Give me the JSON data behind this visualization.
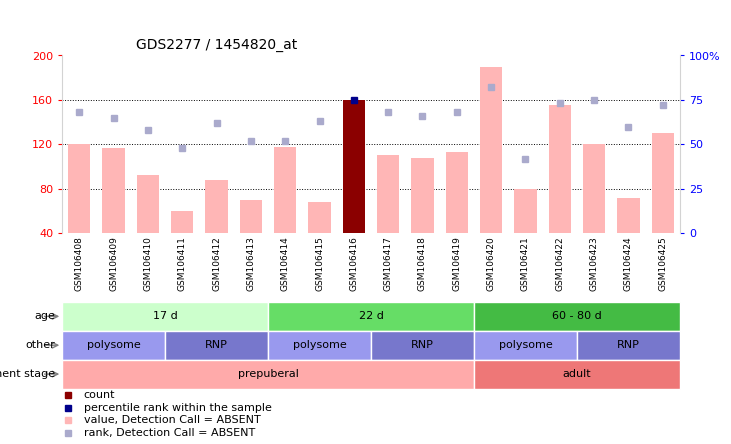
{
  "title": "GDS2277 / 1454820_at",
  "samples": [
    "GSM106408",
    "GSM106409",
    "GSM106410",
    "GSM106411",
    "GSM106412",
    "GSM106413",
    "GSM106414",
    "GSM106415",
    "GSM106416",
    "GSM106417",
    "GSM106418",
    "GSM106419",
    "GSM106420",
    "GSM106421",
    "GSM106422",
    "GSM106423",
    "GSM106424",
    "GSM106425"
  ],
  "bar_values": [
    120,
    117,
    92,
    60,
    88,
    70,
    118,
    68,
    160,
    110,
    108,
    113,
    190,
    80,
    155,
    120,
    72,
    130
  ],
  "bar_highlighted": [
    false,
    false,
    false,
    false,
    false,
    false,
    false,
    false,
    true,
    false,
    false,
    false,
    false,
    false,
    false,
    false,
    false,
    false
  ],
  "rank_values": [
    68,
    65,
    58,
    48,
    62,
    52,
    52,
    63,
    75,
    68,
    66,
    68,
    82,
    42,
    73,
    75,
    60,
    72
  ],
  "rank_highlighted": [
    false,
    false,
    false,
    false,
    false,
    false,
    false,
    false,
    true,
    false,
    false,
    false,
    false,
    false,
    false,
    false,
    false,
    false
  ],
  "bar_color_normal": "#FFB6B6",
  "bar_color_highlight": "#8B0000",
  "rank_color_normal": "#AAAACC",
  "rank_color_highlight": "#00008B",
  "ylim_left": [
    40,
    200
  ],
  "ylim_right": [
    0,
    100
  ],
  "left_ticks": [
    40,
    80,
    120,
    160,
    200
  ],
  "right_ticks": [
    0,
    25,
    50,
    75,
    100
  ],
  "hlines": [
    80,
    120,
    160
  ],
  "annotation_rows": [
    {
      "label": "age",
      "segments": [
        {
          "text": "17 d",
          "start": 0,
          "end": 6,
          "color": "#CCFFCC"
        },
        {
          "text": "22 d",
          "start": 6,
          "end": 12,
          "color": "#66DD66"
        },
        {
          "text": "60 - 80 d",
          "start": 12,
          "end": 18,
          "color": "#44BB44"
        }
      ]
    },
    {
      "label": "other",
      "segments": [
        {
          "text": "polysome",
          "start": 0,
          "end": 3,
          "color": "#9999EE"
        },
        {
          "text": "RNP",
          "start": 3,
          "end": 6,
          "color": "#7777CC"
        },
        {
          "text": "polysome",
          "start": 6,
          "end": 9,
          "color": "#9999EE"
        },
        {
          "text": "RNP",
          "start": 9,
          "end": 12,
          "color": "#7777CC"
        },
        {
          "text": "polysome",
          "start": 12,
          "end": 15,
          "color": "#9999EE"
        },
        {
          "text": "RNP",
          "start": 15,
          "end": 18,
          "color": "#7777CC"
        }
      ]
    },
    {
      "label": "development stage",
      "segments": [
        {
          "text": "prepuberal",
          "start": 0,
          "end": 12,
          "color": "#FFAAAA"
        },
        {
          "text": "adult",
          "start": 12,
          "end": 18,
          "color": "#EE7777"
        }
      ]
    }
  ],
  "legend_items": [
    {
      "color": "#8B0000",
      "label": "count"
    },
    {
      "color": "#00008B",
      "label": "percentile rank within the sample"
    },
    {
      "color": "#FFB6B6",
      "label": "value, Detection Call = ABSENT"
    },
    {
      "color": "#AAAACC",
      "label": "rank, Detection Call = ABSENT"
    }
  ],
  "fig_width": 7.31,
  "fig_height": 4.44,
  "dpi": 100
}
